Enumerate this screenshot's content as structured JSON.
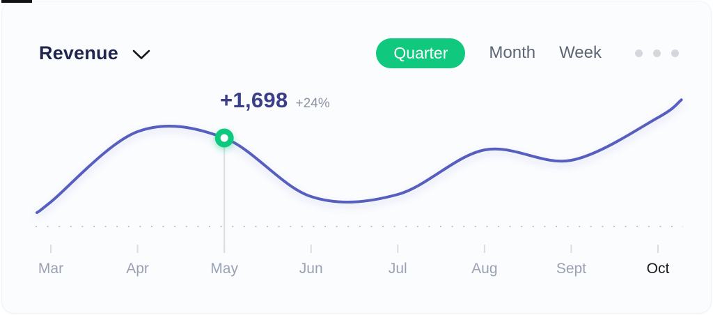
{
  "header": {
    "title": "Revenue",
    "title_icon": "chevron-down-icon",
    "tabs": [
      {
        "label": "Quarter",
        "active": true
      },
      {
        "label": "Month",
        "active": false
      },
      {
        "label": "Week",
        "active": false
      }
    ],
    "more_menu_icon": "ellipsis-icon"
  },
  "tooltip": {
    "value": "+1,698",
    "delta": "+24%"
  },
  "colors": {
    "accent_green": "#10c97e",
    "line_indigo": "#575fbe",
    "title_navy": "#20254e",
    "tooltip_indigo": "#3a3f88",
    "axis_gray": "#99a1b3",
    "axis_highlight": "#15181e",
    "dotted_baseline": "#bfc3cc",
    "tick_gray": "#d9dce3",
    "marker_line_gray": "#dadde3"
  },
  "chart_data": {
    "type": "line",
    "title": "Revenue",
    "selected_period": "Quarter",
    "categories": [
      "Mar",
      "Apr",
      "May",
      "Jun",
      "Jul",
      "Aug",
      "Sept",
      "Oct"
    ],
    "values": [
      470,
      1820,
      1698,
      575,
      615,
      1470,
      1270,
      2090
    ],
    "curve_anchors": [
      [
        -0.16,
        267
      ],
      [
        0,
        470
      ],
      [
        1,
        1820
      ],
      [
        2,
        1698
      ],
      [
        3,
        575
      ],
      [
        4,
        615
      ],
      [
        5,
        1470
      ],
      [
        6,
        1270
      ],
      [
        7,
        2090
      ],
      [
        7.27,
        2430
      ]
    ],
    "highlight": {
      "category": "May",
      "index": 2,
      "value": 1698,
      "value_label": "+1,698",
      "delta_label": "+24%"
    },
    "baseline": 0,
    "ylim": [
      0,
      2600
    ],
    "grid": "dotted-baseline-only",
    "legend": false,
    "x_axis_highlighted_tick": "Oct"
  }
}
